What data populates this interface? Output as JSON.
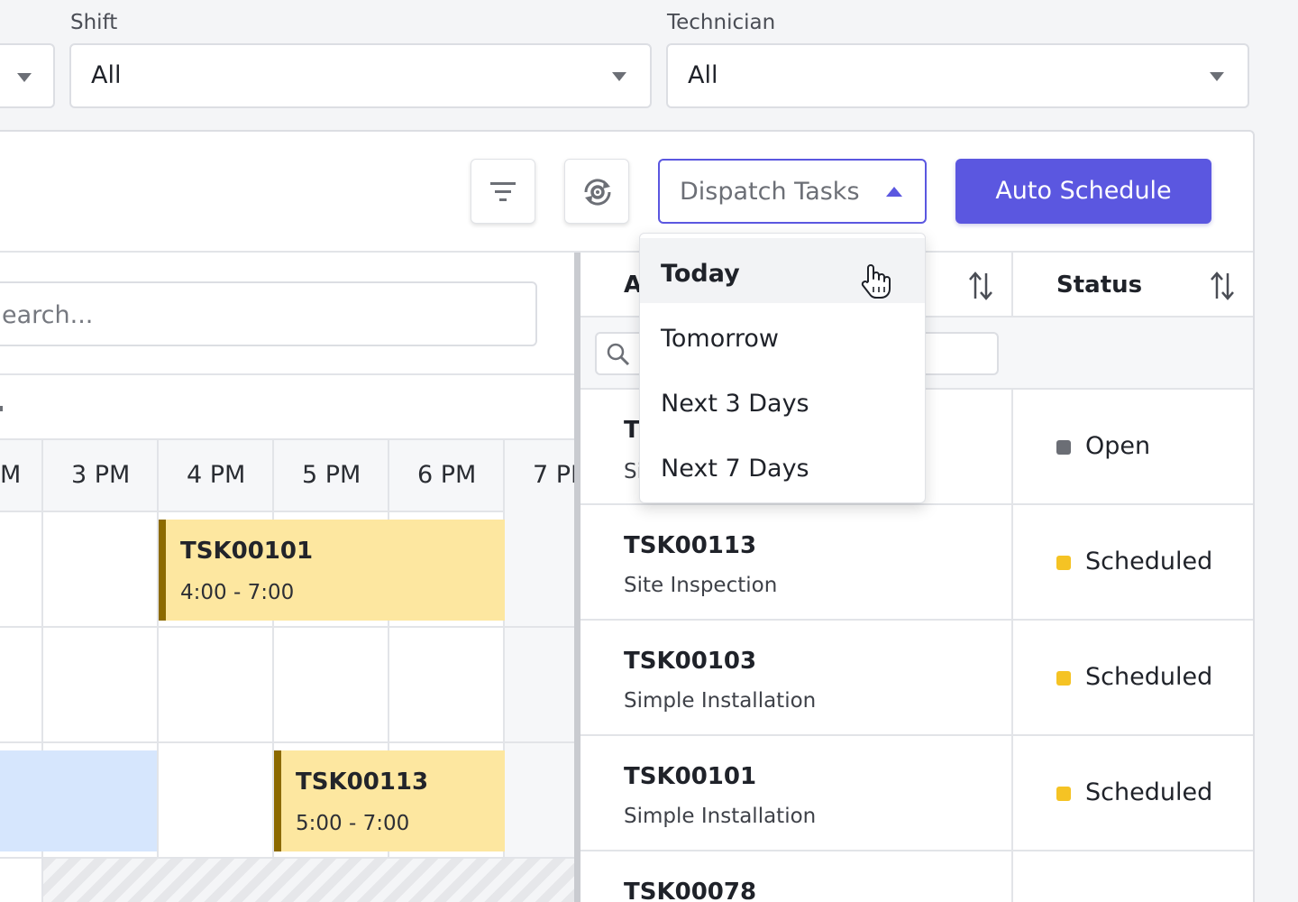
{
  "filters": {
    "shift": {
      "label": "Shift",
      "value": "All"
    },
    "technician": {
      "label": "Technician",
      "value": "All"
    }
  },
  "toolbar": {
    "dispatch_label": "Dispatch Tasks",
    "auto_schedule_label": "Auto Schedule"
  },
  "scheduler": {
    "search_placeholder": "earch...",
    "time_headers": [
      "M",
      "3 PM",
      "4 PM",
      "5 PM",
      "6 PM",
      "7 PI"
    ],
    "events": [
      {
        "id": "TSK00101",
        "time": "4:00 - 7:00"
      },
      {
        "id": "TSK00113",
        "time": "5:00 - 7:00"
      }
    ]
  },
  "dropdown": {
    "items": [
      "Today",
      "Tomorrow",
      "Next 3 Days",
      "Next 7 Days"
    ],
    "hovered": "Today"
  },
  "table": {
    "col_a_label": "A",
    "status_label": "Status",
    "rows": [
      {
        "id": "T",
        "sub": "Si",
        "status": "Open",
        "status_color": "#6b6e75"
      },
      {
        "id": "TSK00113",
        "sub": "Site Inspection",
        "status": "Scheduled",
        "status_color": "#f5c324"
      },
      {
        "id": "TSK00103",
        "sub": "Simple Installation",
        "status": "Scheduled",
        "status_color": "#f5c324"
      },
      {
        "id": "TSK00101",
        "sub": "Simple Installation",
        "status": "Scheduled",
        "status_color": "#f5c324"
      },
      {
        "id": "TSK00078",
        "sub": "",
        "status": "",
        "status_color": ""
      }
    ]
  },
  "colors": {
    "accent": "#5b57e0",
    "event_fill": "#fde7a0",
    "event_border": "#8c6a00",
    "blue_block": "#d6e6fd"
  }
}
